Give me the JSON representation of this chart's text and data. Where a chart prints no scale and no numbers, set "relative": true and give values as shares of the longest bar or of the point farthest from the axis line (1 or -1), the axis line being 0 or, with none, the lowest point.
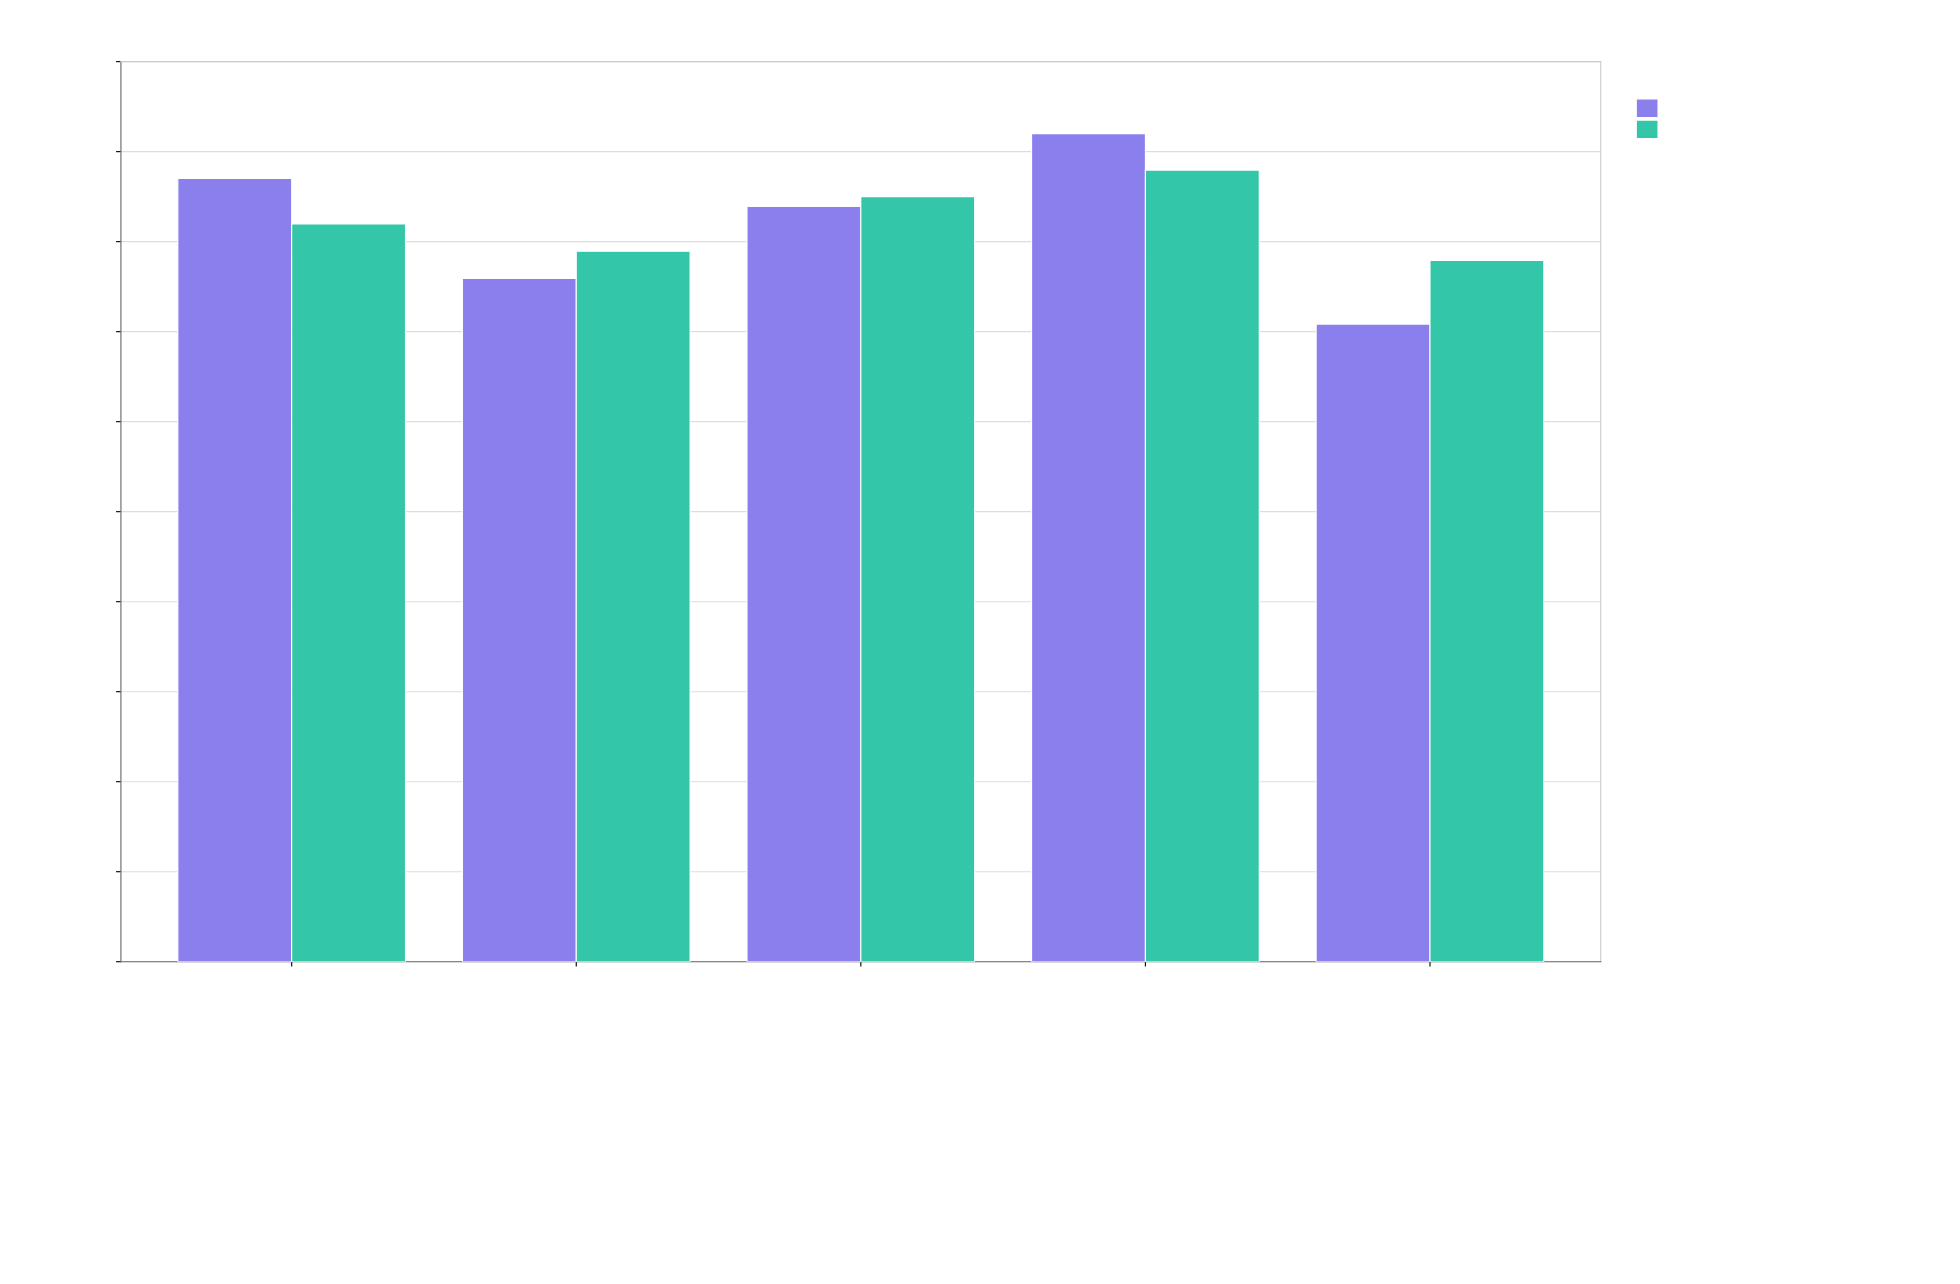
{
  "chart_data": {
    "type": "bar",
    "relative": true,
    "categories": [
      null,
      null,
      null,
      null,
      null
    ],
    "series": [
      {
        "color": "#8a7fec",
        "values": [
          0.946,
          0.825,
          0.912,
          1,
          0.77
        ]
      },
      {
        "color": "#33c6a8",
        "values": [
          0.891,
          0.858,
          0.924,
          0.956,
          0.847
        ]
      }
    ],
    "grid": "y",
    "tick_labels": false
  }
}
